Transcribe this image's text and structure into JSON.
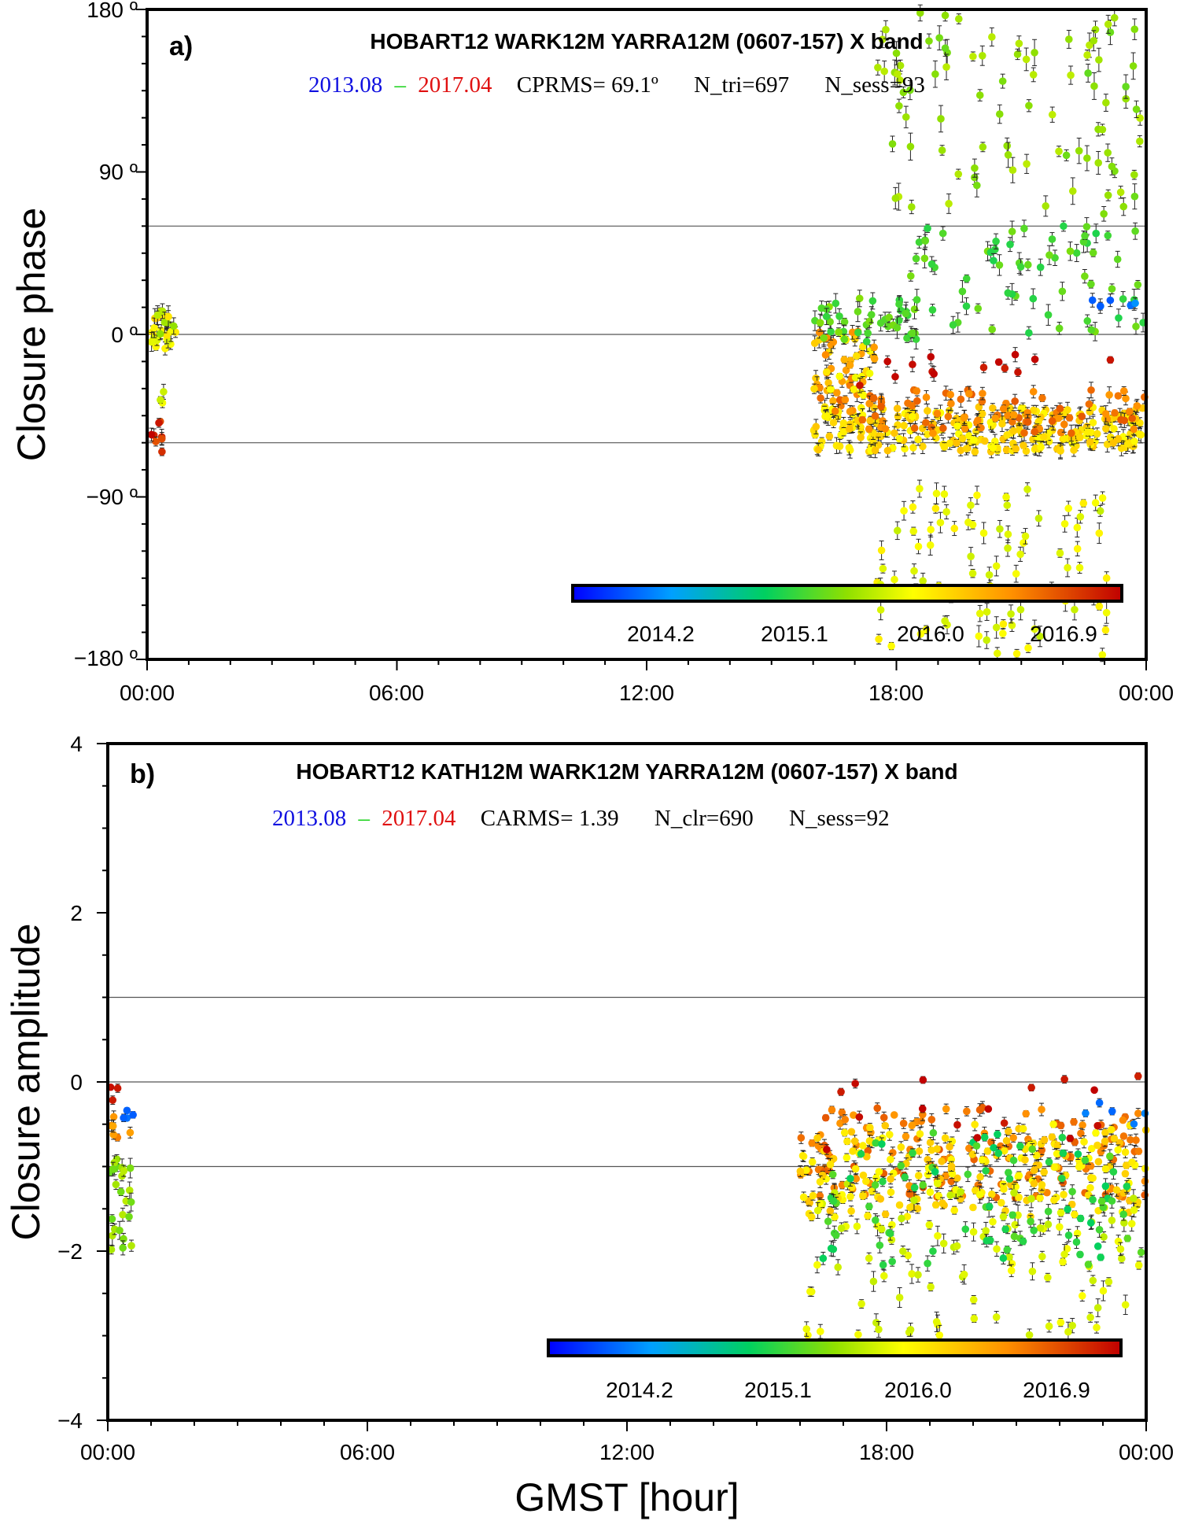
{
  "figure": {
    "xlabel": "GMST [hour]",
    "x_ticks": [
      "00:00",
      "06:00",
      "12:00",
      "18:00",
      "00:00"
    ],
    "colorbar": {
      "labels": [
        "2014.2",
        "2015.1",
        "2016.0",
        "2016.9"
      ],
      "range": [
        2013.08,
        2017.04
      ]
    },
    "colors": {
      "start": "#1010e0",
      "dash": "#10d010",
      "end": "#e01010",
      "frame": "#000000",
      "refline": "#555555"
    }
  },
  "chart_data": [
    {
      "type": "scatter",
      "panel": "a)",
      "title": "HOBART12 WARK12M  YARRA12M (0607-157) X band",
      "stats": {
        "start": "2013.08",
        "dash": "–",
        "end": "2017.04",
        "rms": "CPRMS= 69.1º",
        "n_count": "N_tri=697",
        "n_sess": "N_sess=93"
      },
      "ylabel": "Closure phase",
      "y_ticks": [
        "180 º",
        "90 º",
        "0 º",
        "−90 º",
        "−180 º"
      ],
      "ylim": [
        -180,
        180
      ],
      "xlim": [
        0,
        24
      ],
      "ref_lines": [
        60,
        0,
        -60
      ],
      "clusters": [
        {
          "x": [
            0.05,
            0.7
          ],
          "y": [
            -10,
            14
          ],
          "t": [
            0.5,
            0.7
          ],
          "n": 30,
          "err": 4
        },
        {
          "x": [
            0.05,
            0.5
          ],
          "y": [
            -68,
            -45
          ],
          "t": [
            0.85,
            1.0
          ],
          "n": 8,
          "err": 3
        },
        {
          "x": [
            0.3,
            0.5
          ],
          "y": [
            -38,
            -25
          ],
          "t": [
            0.55,
            0.65
          ],
          "n": 3,
          "err": 3
        },
        {
          "x": [
            16.0,
            17.5
          ],
          "y": [
            -42,
            2
          ],
          "t": [
            0.6,
            0.85
          ],
          "n": 60,
          "err": 3
        },
        {
          "x": [
            16.0,
            24.0
          ],
          "y": [
            -65,
            -40
          ],
          "t": [
            0.62,
            0.72
          ],
          "n": 260,
          "err": 3
        },
        {
          "x": [
            16.3,
            24.0
          ],
          "y": [
            -55,
            -30
          ],
          "t": [
            0.78,
            0.88
          ],
          "n": 90,
          "err": 3
        },
        {
          "x": [
            17.0,
            23.8
          ],
          "y": [
            -30,
            -10
          ],
          "t": [
            0.95,
            1.0
          ],
          "n": 14,
          "err": 3
        },
        {
          "x": [
            16.0,
            18.5
          ],
          "y": [
            -5,
            20
          ],
          "t": [
            0.4,
            0.5
          ],
          "n": 40,
          "err": 4
        },
        {
          "x": [
            18.0,
            24.0
          ],
          "y": [
            0,
            60
          ],
          "t": [
            0.38,
            0.48
          ],
          "n": 70,
          "err": 4
        },
        {
          "x": [
            17.5,
            24.0
          ],
          "y": [
            60,
            180
          ],
          "t": [
            0.45,
            0.55
          ],
          "n": 90,
          "err": 5
        },
        {
          "x": [
            17.5,
            23.2
          ],
          "y": [
            -178,
            -85
          ],
          "t": [
            0.55,
            0.65
          ],
          "n": 90,
          "err": 4
        },
        {
          "x": [
            22.6,
            23.8
          ],
          "y": [
            2,
            20
          ],
          "t": [
            0.1,
            0.2
          ],
          "n": 6,
          "err": 3
        }
      ]
    },
    {
      "type": "scatter",
      "panel": "b)",
      "title": "HOBART12 KATH12M WARK12M YARRA12M  (0607-157) X band",
      "stats": {
        "start": "2013.08",
        "dash": "–",
        "end": "2017.04",
        "rms": "CARMS= 1.39",
        "n_count": "N_clr=690",
        "n_sess": "N_sess=92"
      },
      "ylabel": "Closure amplitude",
      "y_ticks": [
        "4",
        "2",
        "0",
        "−2",
        "−4"
      ],
      "ylim": [
        -4,
        4
      ],
      "xlim": [
        0,
        24
      ],
      "ref_lines": [
        1,
        0,
        -1
      ],
      "clusters": [
        {
          "x": [
            0.05,
            0.6
          ],
          "y": [
            -2.0,
            -0.9
          ],
          "t": [
            0.45,
            0.55
          ],
          "n": 25,
          "err": 0.08
        },
        {
          "x": [
            0.05,
            0.6
          ],
          "y": [
            -0.7,
            -0.4
          ],
          "t": [
            0.75,
            0.85
          ],
          "n": 6,
          "err": 0.05
        },
        {
          "x": [
            0.3,
            0.6
          ],
          "y": [
            -0.5,
            -0.3
          ],
          "t": [
            0.1,
            0.15
          ],
          "n": 4,
          "err": 0.05
        },
        {
          "x": [
            0.05,
            0.35
          ],
          "y": [
            -0.25,
            -0.05
          ],
          "t": [
            0.95,
            1.0
          ],
          "n": 3,
          "err": 0.05
        },
        {
          "x": [
            16.0,
            24.0
          ],
          "y": [
            -1.4,
            -0.3
          ],
          "t": [
            0.78,
            0.88
          ],
          "n": 140,
          "err": 0.05
        },
        {
          "x": [
            16.0,
            24.0
          ],
          "y": [
            -1.6,
            -0.5
          ],
          "t": [
            0.62,
            0.72
          ],
          "n": 200,
          "err": 0.05
        },
        {
          "x": [
            16.0,
            24.0
          ],
          "y": [
            -3.0,
            -1.2
          ],
          "t": [
            0.55,
            0.62
          ],
          "n": 110,
          "err": 0.08
        },
        {
          "x": [
            16.5,
            24.0
          ],
          "y": [
            -2.2,
            -0.6
          ],
          "t": [
            0.35,
            0.45
          ],
          "n": 90,
          "err": 0.06
        },
        {
          "x": [
            16.0,
            24.0
          ],
          "y": [
            -0.8,
            0.3
          ],
          "t": [
            0.95,
            1.0
          ],
          "n": 16,
          "err": 0.05
        },
        {
          "x": [
            22.5,
            24.0
          ],
          "y": [
            -0.6,
            -0.1
          ],
          "t": [
            0.1,
            0.15
          ],
          "n": 5,
          "err": 0.05
        }
      ]
    }
  ]
}
